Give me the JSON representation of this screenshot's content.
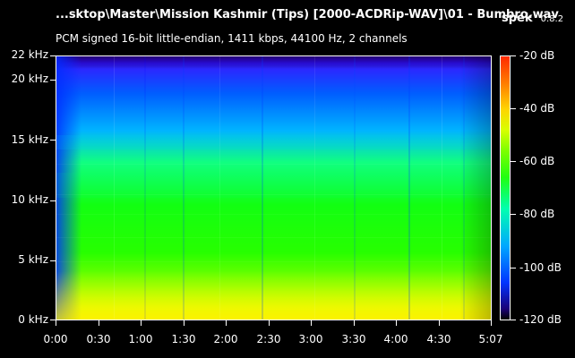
{
  "header": {
    "title": "...sktop\\Master\\Mission Kashmir (Tips) [2000-ACDRip-WAV]\\01 - Bumbro.wav",
    "app_name": "spek",
    "app_version": "0.8.2",
    "info": "PCM signed 16-bit little-endian, 1411 kbps, 44100 Hz, 2 channels"
  },
  "axes": {
    "frequency_labels": [
      "22 kHz",
      "20 kHz",
      "15 kHz",
      "10 kHz",
      "5 kHz",
      "0 kHz"
    ],
    "time_labels": [
      "0:00",
      "0:30",
      "1:00",
      "1:30",
      "2:00",
      "2:30",
      "3:00",
      "3:30",
      "4:00",
      "4:30",
      "5:07"
    ],
    "db_labels": [
      "-20 dB",
      "-40 dB",
      "-60 dB",
      "-80 dB",
      "-100 dB",
      "-120 dB"
    ]
  },
  "colors": {
    "background": "#000000",
    "text": "#ffffff",
    "spectrum_low": "#1b0077",
    "spectrum_mid": "#00a8ff",
    "spectrum_high": "#ff2a00"
  }
}
